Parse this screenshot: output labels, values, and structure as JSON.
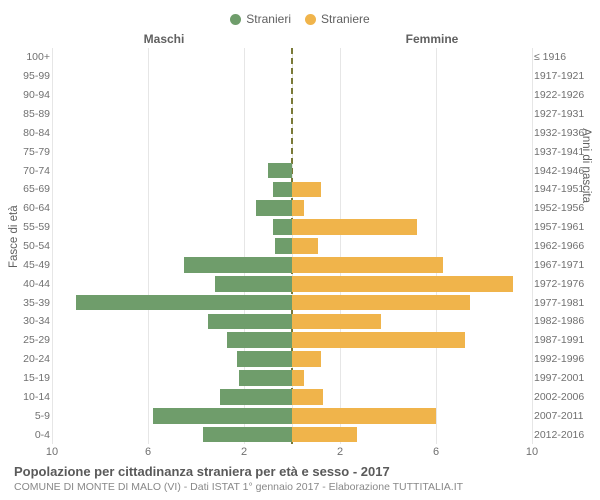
{
  "legend": {
    "male_label": "Stranieri",
    "female_label": "Straniere",
    "male_color": "#6f9d6b",
    "female_color": "#f0b44b"
  },
  "axis_titles": {
    "left": "Maschi",
    "right": "Femmine"
  },
  "y_left_label": "Fasce di età",
  "y_right_label": "Anni di nascita",
  "x_axis": {
    "ticks_left": [
      10,
      6,
      2
    ],
    "ticks_right": [
      2,
      6,
      10
    ],
    "max": 10
  },
  "rows": [
    {
      "age": "100+",
      "birth": "≤ 1916",
      "m": 0,
      "f": 0
    },
    {
      "age": "95-99",
      "birth": "1917-1921",
      "m": 0,
      "f": 0
    },
    {
      "age": "90-94",
      "birth": "1922-1926",
      "m": 0,
      "f": 0
    },
    {
      "age": "85-89",
      "birth": "1927-1931",
      "m": 0,
      "f": 0
    },
    {
      "age": "80-84",
      "birth": "1932-1936",
      "m": 0,
      "f": 0
    },
    {
      "age": "75-79",
      "birth": "1937-1941",
      "m": 0,
      "f": 0
    },
    {
      "age": "70-74",
      "birth": "1942-1946",
      "m": 1.0,
      "f": 0
    },
    {
      "age": "65-69",
      "birth": "1947-1951",
      "m": 0.8,
      "f": 1.2
    },
    {
      "age": "60-64",
      "birth": "1952-1956",
      "m": 1.5,
      "f": 0.5
    },
    {
      "age": "55-59",
      "birth": "1957-1961",
      "m": 0.8,
      "f": 5.2
    },
    {
      "age": "50-54",
      "birth": "1962-1966",
      "m": 0.7,
      "f": 1.1
    },
    {
      "age": "45-49",
      "birth": "1967-1971",
      "m": 4.5,
      "f": 6.3
    },
    {
      "age": "40-44",
      "birth": "1972-1976",
      "m": 3.2,
      "f": 9.2
    },
    {
      "age": "35-39",
      "birth": "1977-1981",
      "m": 9.0,
      "f": 7.4
    },
    {
      "age": "30-34",
      "birth": "1982-1986",
      "m": 3.5,
      "f": 3.7
    },
    {
      "age": "25-29",
      "birth": "1987-1991",
      "m": 2.7,
      "f": 7.2
    },
    {
      "age": "20-24",
      "birth": "1992-1996",
      "m": 2.3,
      "f": 1.2
    },
    {
      "age": "15-19",
      "birth": "1997-2001",
      "m": 2.2,
      "f": 0.5
    },
    {
      "age": "10-14",
      "birth": "2002-2006",
      "m": 3.0,
      "f": 1.3
    },
    {
      "age": "5-9",
      "birth": "2007-2011",
      "m": 5.8,
      "f": 6.0
    },
    {
      "age": "0-4",
      "birth": "2012-2016",
      "m": 3.7,
      "f": 2.7
    }
  ],
  "styling": {
    "grid_color": "#e6e6e6",
    "centerline_color": "#7a7a38",
    "background_color": "#ffffff",
    "label_font_size": 10.5,
    "tick_font_size": 11,
    "axis_title_font_size": 12
  },
  "footer": {
    "title": "Popolazione per cittadinanza straniera per età e sesso - 2017",
    "subtitle": "COMUNE DI MONTE DI MALO (VI) - Dati ISTAT 1° gennaio 2017 - Elaborazione TUTTITALIA.IT"
  }
}
